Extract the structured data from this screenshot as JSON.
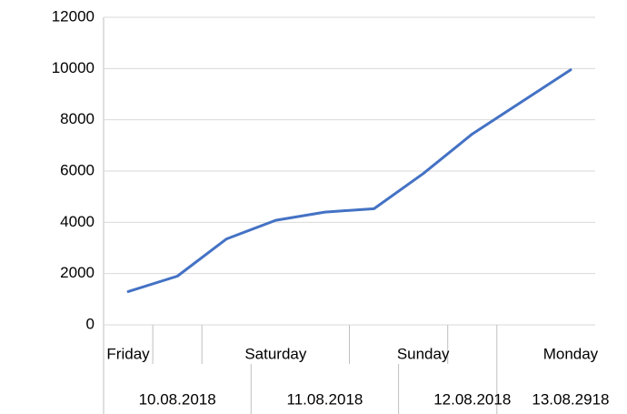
{
  "chart_data": {
    "type": "line",
    "categories": [
      "Friday",
      null,
      null,
      "Saturday",
      null,
      null,
      "Sunday",
      null,
      null,
      "Monday"
    ],
    "categories_level2": [
      null,
      "10.08.2018",
      null,
      null,
      "11.08.2018",
      null,
      null,
      "12.08.2018",
      null,
      "13.08.2918"
    ],
    "values": [
      1300,
      1900,
      3350,
      4080,
      4400,
      4530,
      5900,
      7450,
      8700,
      9950
    ],
    "color": "#4472c4",
    "ylim": [
      0,
      12000
    ],
    "yticks": [
      0,
      2000,
      4000,
      6000,
      8000,
      10000,
      12000
    ],
    "grid": true
  }
}
